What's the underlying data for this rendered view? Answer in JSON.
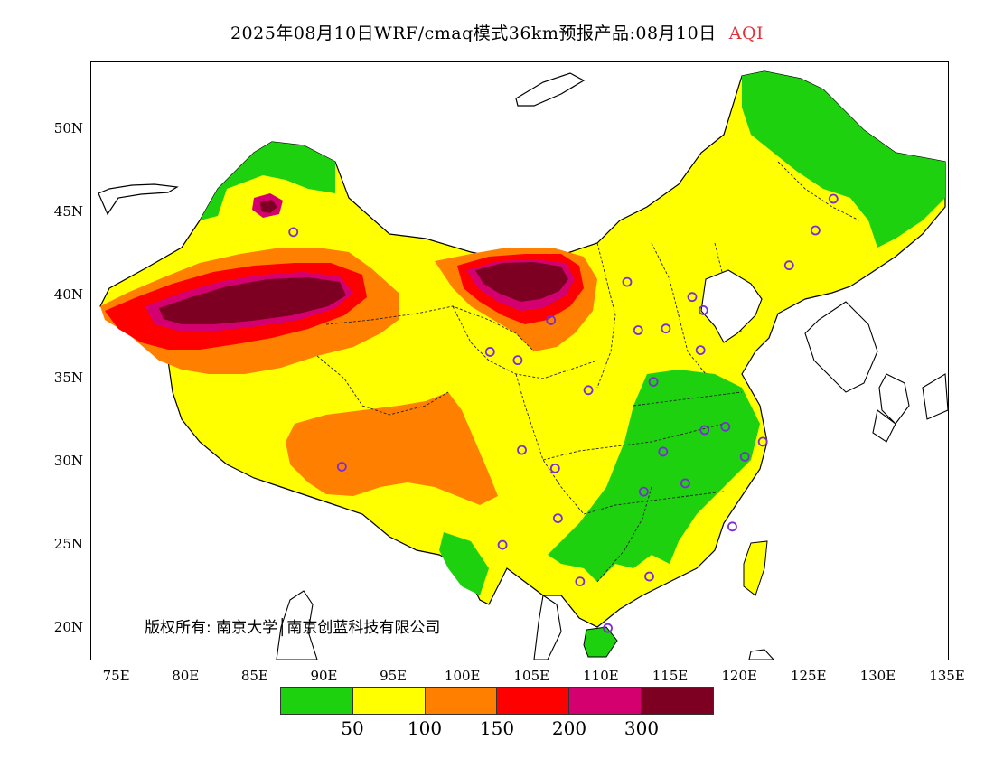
{
  "title": {
    "main": "2025年08月10日WRF/cmaq模式36km预报产品:08月10日",
    "variable": "AQI"
  },
  "map": {
    "lat_labels": [
      "50N",
      "45N",
      "40N",
      "35N",
      "30N",
      "25N",
      "20N"
    ],
    "lon_labels": [
      "75E",
      "80E",
      "85E",
      "90E",
      "95E",
      "100E",
      "105E",
      "110E",
      "115E",
      "120E",
      "125E",
      "130E",
      "135E"
    ],
    "extent": {
      "lon_min": 73,
      "lon_max": 135,
      "lat_min": 18,
      "lat_max": 54
    },
    "stations": [
      {
        "lon": 87.6,
        "lat": 43.8
      },
      {
        "lon": 91.1,
        "lat": 29.7
      },
      {
        "lon": 101.8,
        "lat": 36.6
      },
      {
        "lon": 103.8,
        "lat": 36.1
      },
      {
        "lon": 106.2,
        "lat": 38.5
      },
      {
        "lon": 111.7,
        "lat": 40.8
      },
      {
        "lon": 116.4,
        "lat": 39.9
      },
      {
        "lon": 117.2,
        "lat": 39.1
      },
      {
        "lon": 114.5,
        "lat": 38.0
      },
      {
        "lon": 112.5,
        "lat": 37.9
      },
      {
        "lon": 117.0,
        "lat": 36.7
      },
      {
        "lon": 113.6,
        "lat": 34.8
      },
      {
        "lon": 108.9,
        "lat": 34.3
      },
      {
        "lon": 104.1,
        "lat": 30.7
      },
      {
        "lon": 106.5,
        "lat": 29.6
      },
      {
        "lon": 106.7,
        "lat": 26.6
      },
      {
        "lon": 102.7,
        "lat": 25.0
      },
      {
        "lon": 108.3,
        "lat": 22.8
      },
      {
        "lon": 113.3,
        "lat": 23.1
      },
      {
        "lon": 110.3,
        "lat": 20.0
      },
      {
        "lon": 112.9,
        "lat": 28.2
      },
      {
        "lon": 115.9,
        "lat": 28.7
      },
      {
        "lon": 114.3,
        "lat": 30.6
      },
      {
        "lon": 117.3,
        "lat": 31.9
      },
      {
        "lon": 118.8,
        "lat": 32.1
      },
      {
        "lon": 120.2,
        "lat": 30.3
      },
      {
        "lon": 121.5,
        "lat": 31.2
      },
      {
        "lon": 119.3,
        "lat": 26.1
      },
      {
        "lon": 123.4,
        "lat": 41.8
      },
      {
        "lon": 125.3,
        "lat": 43.9
      },
      {
        "lon": 126.6,
        "lat": 45.8
      }
    ]
  },
  "legend": {
    "colors": [
      "#1ed10f",
      "#ffff00",
      "#ff7f00",
      "#ff0000",
      "#d4006f",
      "#7d0023"
    ],
    "ticks": [
      "50",
      "100",
      "150",
      "200",
      "300"
    ]
  },
  "copyright": "版权所有: 南京大学│南京创蓝科技有限公司"
}
